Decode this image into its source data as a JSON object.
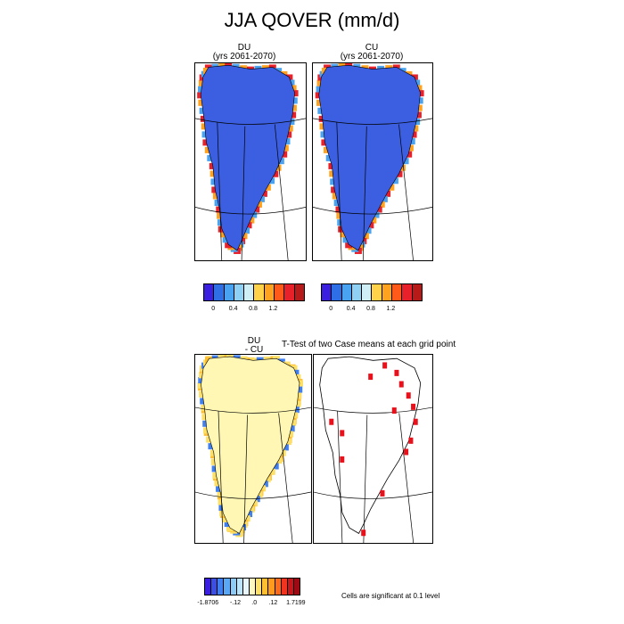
{
  "title": "JJA QOVER (mm/d)",
  "panels": {
    "du": {
      "label": "DU",
      "years": "(yrs 2061-2070)"
    },
    "cu": {
      "label": "CU",
      "years": "(yrs 2061-2070)"
    },
    "diff": {
      "label1": "DU",
      "label2": "- CU"
    },
    "ttest": {
      "title": "T-Test of two Case means at each grid point"
    }
  },
  "colorbar_top": {
    "colors": [
      "#3a1fe0",
      "#2f6fe6",
      "#4aa3f0",
      "#8fd0f5",
      "#cfeef5",
      "#ffd24a",
      "#ffa21f",
      "#ff5a1a",
      "#e8202a",
      "#b81a1a"
    ],
    "ticks": [
      "0",
      "0.4",
      "0.8",
      "1.2"
    ]
  },
  "colorbar_bottom": {
    "colors": [
      "#3a1fe0",
      "#3b4ee8",
      "#3f7ff0",
      "#5aa8f5",
      "#8ccaf8",
      "#bde3f8",
      "#e6f6fb",
      "#fff7c2",
      "#ffe066",
      "#ffbf33",
      "#ff9a1f",
      "#ff6a1a",
      "#f0341f",
      "#c8161a",
      "#9e0a14"
    ],
    "ticks": [
      "-1.8706",
      "-.12",
      ".0",
      ".12",
      "1.7199"
    ]
  },
  "note": "Cells are significant at 0.1 level",
  "colors": {
    "ice_top": "#3b5fe0",
    "ice_diff": "#fff7b3",
    "signif": "#e8101a"
  }
}
